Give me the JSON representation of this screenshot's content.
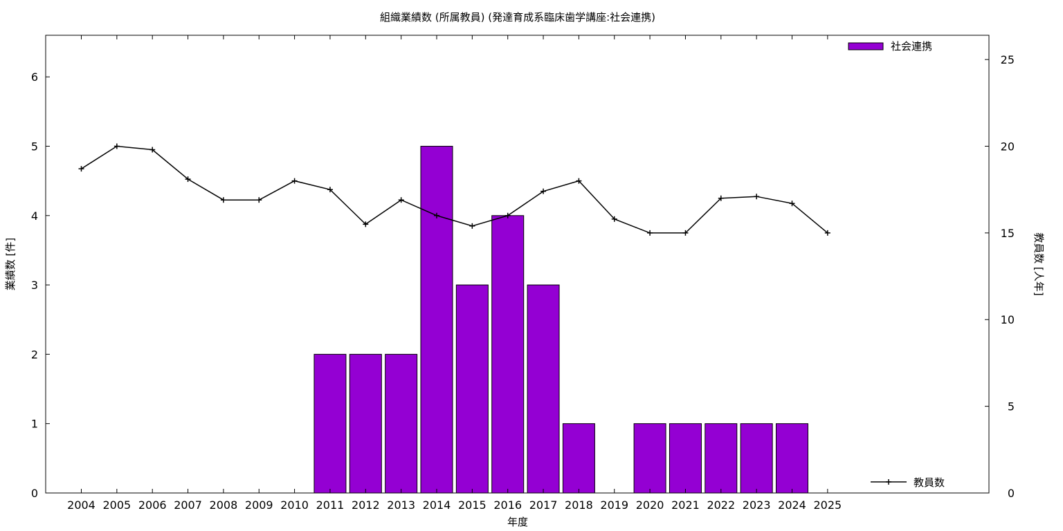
{
  "chart_data": {
    "type": "bar",
    "title": "組織業績数 (所属教員) (発達育成系臨床歯学講座:社会連携)",
    "xlabel": "年度",
    "ylabel": "業績数 [件]",
    "y2label": "教員数 [人年]",
    "categories": [
      "2004",
      "2005",
      "2006",
      "2007",
      "2008",
      "2009",
      "2010",
      "2011",
      "2012",
      "2013",
      "2014",
      "2015",
      "2016",
      "2017",
      "2018",
      "2019",
      "2020",
      "2021",
      "2022",
      "2023",
      "2024",
      "2025"
    ],
    "ylim": [
      0,
      6.6
    ],
    "y2lim": [
      0,
      26.4
    ],
    "yticks": [
      "0",
      "1",
      "2",
      "3",
      "4",
      "5",
      "6"
    ],
    "y2ticks": [
      "0",
      "5",
      "10",
      "15",
      "20",
      "25"
    ],
    "series": [
      {
        "name": "社会連携",
        "kind": "bar",
        "axis": "left",
        "color": "#9400d3",
        "values": [
          0,
          0,
          0,
          0,
          0,
          0,
          0,
          2,
          2,
          2,
          5,
          3,
          4,
          3,
          1,
          0,
          1,
          1,
          1,
          1,
          1,
          0
        ]
      },
      {
        "name": "教員数",
        "kind": "line",
        "axis": "right",
        "color": "#000000",
        "values": [
          18.7,
          20.0,
          19.8,
          18.1,
          16.9,
          16.9,
          18.0,
          17.5,
          15.5,
          16.9,
          16.0,
          15.4,
          16.0,
          17.4,
          18.0,
          15.8,
          15.0,
          15.0,
          17.0,
          17.1,
          16.7,
          15.0
        ]
      }
    ],
    "legend": {
      "bar_position": "top-right",
      "line_position": "bottom-right"
    },
    "grid": false
  }
}
